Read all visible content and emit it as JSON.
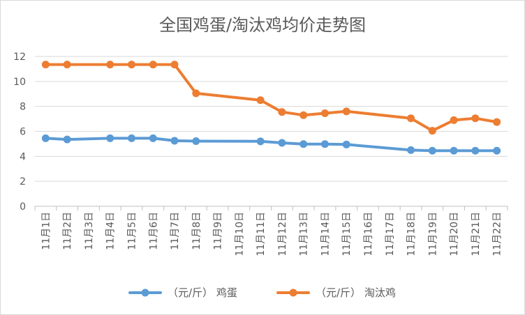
{
  "chart_data": {
    "type": "line",
    "title": "全国鸡蛋/淘汰鸡均价走势图",
    "categories": [
      "11月1日",
      "11月2日",
      "11月3日",
      "11月4日",
      "11月5日",
      "11月6日",
      "11月7日",
      "11月8日",
      "11月9日",
      "11月10日",
      "11月11日",
      "11月12日",
      "11月13日",
      "11月14日",
      "11月15日",
      "11月16日",
      "11月17日",
      "11月18日",
      "11月19日",
      "11月20日",
      "11月21日",
      "11月22日"
    ],
    "ylim": [
      0,
      12
    ],
    "yticks": [
      0,
      2,
      4,
      6,
      8,
      10,
      12
    ],
    "grid": true,
    "legend_position": "bottom",
    "series": [
      {
        "name": "（元/斤） 鸡蛋",
        "color": "#5B9BD5",
        "values": [
          5.45,
          5.35,
          null,
          5.45,
          5.45,
          5.45,
          5.25,
          5.22,
          null,
          null,
          5.2,
          5.08,
          4.98,
          4.98,
          4.95,
          null,
          null,
          4.5,
          4.45,
          4.45,
          4.45,
          4.45
        ]
      },
      {
        "name": "（元/斤） 淘汰鸡",
        "color": "#ED7D31",
        "values": [
          11.35,
          11.35,
          null,
          11.35,
          11.35,
          11.35,
          11.35,
          9.05,
          null,
          null,
          8.5,
          7.55,
          7.3,
          7.45,
          7.6,
          null,
          null,
          7.05,
          6.05,
          6.9,
          7.05,
          6.75
        ]
      }
    ]
  }
}
